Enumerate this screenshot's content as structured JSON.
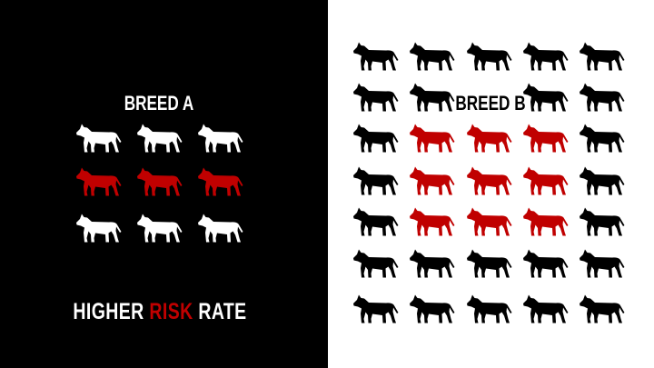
{
  "colors": {
    "background_left": "#000000",
    "background_right": "#ffffff",
    "risk": "#c00000",
    "dog_on_dark": "#ffffff",
    "dog_on_light": "#000000"
  },
  "icon": "dog-silhouette-icon",
  "breed_a": {
    "label": "BREED A",
    "grid": [
      [
        "white",
        "white",
        "white"
      ],
      [
        "red",
        "red",
        "red"
      ],
      [
        "white",
        "white",
        "white"
      ]
    ]
  },
  "breed_b": {
    "label": "BREED B",
    "grid": [
      [
        "black",
        "black",
        "black",
        "black",
        "black"
      ],
      [
        "black",
        "black",
        null,
        "black",
        "black"
      ],
      [
        "black",
        "red",
        "red",
        "red",
        "black"
      ],
      [
        "black",
        "red",
        "red",
        "red",
        "black"
      ],
      [
        "black",
        "red",
        "red",
        "red",
        "black"
      ],
      [
        "black",
        "black",
        "black",
        "black",
        "black"
      ],
      [
        "black",
        "black",
        "black",
        "black",
        "black"
      ]
    ]
  },
  "tagline": {
    "part1": "HIGHER ",
    "highlight": "RISK",
    "part2": " RATE"
  }
}
